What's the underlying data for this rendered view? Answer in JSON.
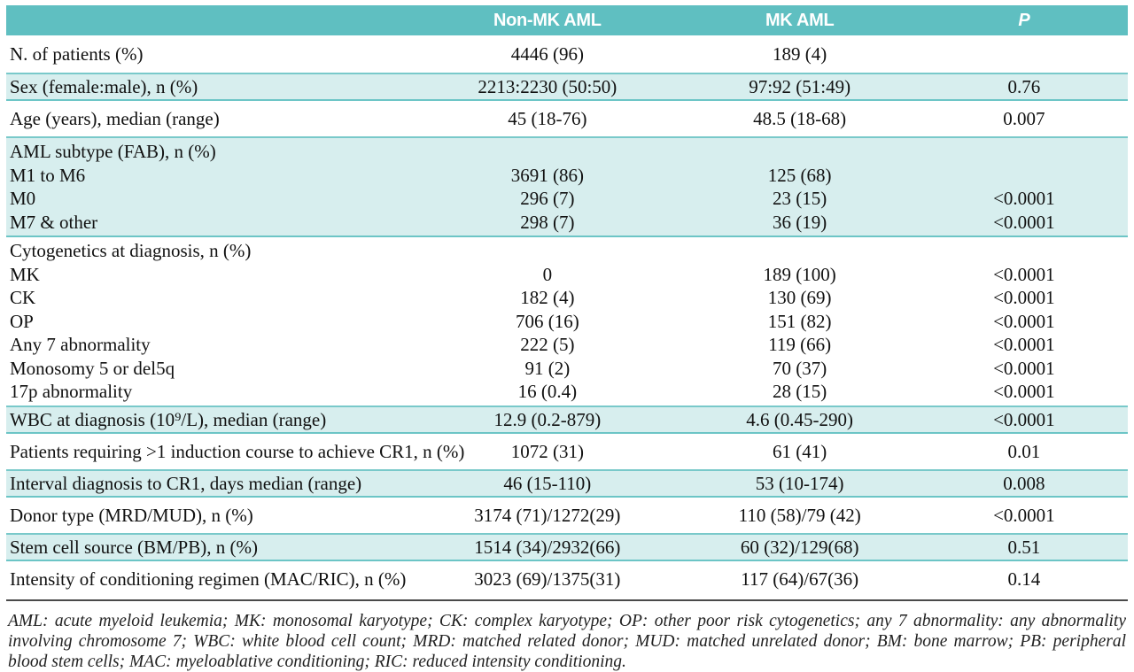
{
  "table": {
    "columns": {
      "label": "",
      "non_mk": "Non-MK AML",
      "mk": "MK AML",
      "p": "P"
    },
    "sections": [
      {
        "band": "white",
        "lines": [
          {
            "label": "N. of patients (%)",
            "non_mk": "4446 (96)",
            "mk": "189 (4)",
            "p": ""
          }
        ]
      },
      {
        "band": "teal",
        "lines": [
          {
            "label": "Sex (female:male), n (%)",
            "non_mk": "2213:2230 (50:50)",
            "mk": "97:92 (51:49)",
            "p": "0.76"
          }
        ]
      },
      {
        "band": "white",
        "lines": [
          {
            "label": "Age (years), median (range)",
            "non_mk": "45 (18-76)",
            "mk": "48.5 (18-68)",
            "p": "0.007"
          }
        ]
      },
      {
        "band": "teal",
        "lines": [
          {
            "label": "AML subtype (FAB), n (%)",
            "non_mk": "",
            "mk": "",
            "p": ""
          },
          {
            "label": "M1 to M6",
            "non_mk": "3691 (86)",
            "mk": "125 (68)",
            "p": ""
          },
          {
            "label": "M0",
            "non_mk": "296 (7)",
            "mk": "23 (15)",
            "p": "<0.0001"
          },
          {
            "label": "M7 & other",
            "non_mk": "298 (7)",
            "mk": "36 (19)",
            "p": "<0.0001"
          }
        ]
      },
      {
        "band": "white",
        "lines": [
          {
            "label": "Cytogenetics at diagnosis, n (%)",
            "non_mk": "",
            "mk": "",
            "p": ""
          },
          {
            "label": "MK",
            "non_mk": "0",
            "mk": "189 (100)",
            "p": "<0.0001"
          },
          {
            "label": "CK",
            "non_mk": "182 (4)",
            "mk": "130 (69)",
            "p": "<0.0001"
          },
          {
            "label": "OP",
            "non_mk": "706 (16)",
            "mk": "151 (82)",
            "p": "<0.0001"
          },
          {
            "label": "Any 7 abnormality",
            "non_mk": "222 (5)",
            "mk": "119 (66)",
            "p": "<0.0001"
          },
          {
            "label": "Monosomy 5 or del5q",
            "non_mk": "91 (2)",
            "mk": "70 (37)",
            "p": "<0.0001"
          },
          {
            "label": "17p abnormality",
            "non_mk": "16 (0.4)",
            "mk": "28 (15)",
            "p": "<0.0001"
          }
        ]
      },
      {
        "band": "teal",
        "lines": [
          {
            "label": "WBC at diagnosis (10⁹/L), median (range)",
            "non_mk": "12.9 (0.2-879)",
            "mk": "4.6 (0.45-290)",
            "p": "<0.0001"
          }
        ]
      },
      {
        "band": "white",
        "lines": [
          {
            "label": "Patients requiring >1 induction course to achieve CR1, n (%)",
            "non_mk": "1072 (31)",
            "mk": "61 (41)",
            "p": "0.01"
          }
        ]
      },
      {
        "band": "teal",
        "lines": [
          {
            "label": "Interval diagnosis to CR1, days median (range)",
            "non_mk": "46 (15-110)",
            "mk": "53 (10-174)",
            "p": "0.008"
          }
        ]
      },
      {
        "band": "white",
        "lines": [
          {
            "label": "Donor type (MRD/MUD), n (%)",
            "non_mk": "3174 (71)/1272(29)",
            "mk": "110 (58)/79 (42)",
            "p": "<0.0001"
          }
        ]
      },
      {
        "band": "teal",
        "lines": [
          {
            "label": "Stem cell source (BM/PB), n (%)",
            "non_mk": "1514 (34)/2932(66)",
            "mk": "60 (32)/129(68)",
            "p": "0.51"
          }
        ]
      },
      {
        "band": "white",
        "lines": [
          {
            "label": "Intensity of conditioning regimen (MAC/RIC), n (%)",
            "non_mk": "3023 (69)/1375(31)",
            "mk": "117 (64)/67(36)",
            "p": "0.14"
          }
        ]
      }
    ]
  },
  "footnote": {
    "text": "AML: acute myeloid leukemia; MK: monosomal karyotype; CK: complex karyotype;  OP: other poor risk cytogenetics; any 7 abnormality: any abnormality involving chromosome 7; WBC: white blood cell count; MRD: matched related donor;  MUD: matched unrelated donor; BM: bone marrow; PB: peripheral blood stem cells; MAC: myeloablative conditioning; RIC: reduced intensity conditioning."
  },
  "colors": {
    "header_teal": "#5fbfc1",
    "band_teal": "#d7eeee",
    "band_border": "#6cc5c6",
    "bottom_rule": "#4a4a4a"
  }
}
